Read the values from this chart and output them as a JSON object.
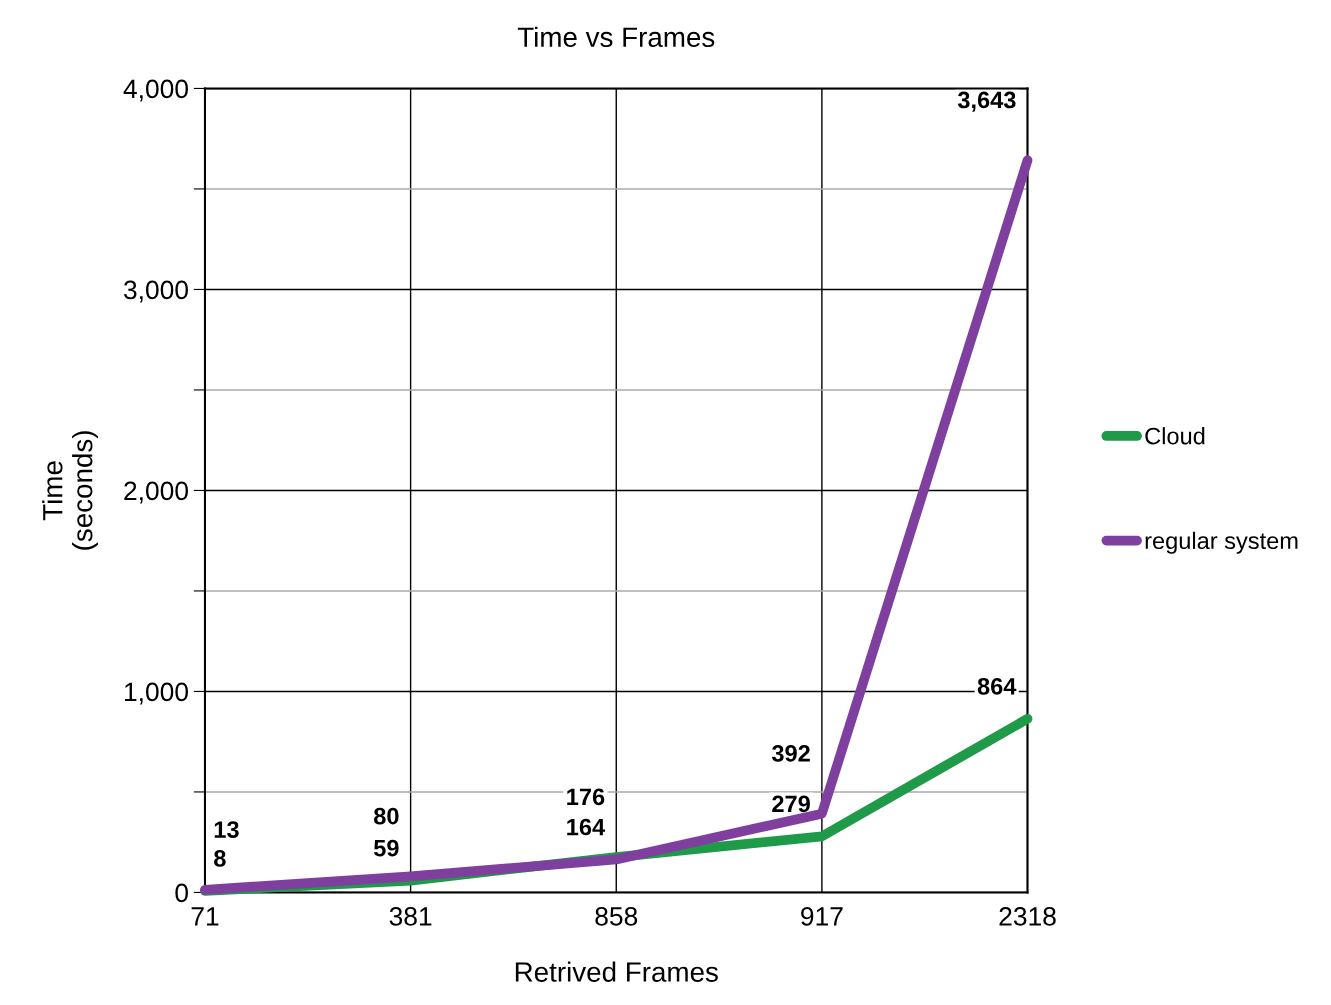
{
  "chart_data": {
    "type": "line",
    "title": "Time vs Frames",
    "xlabel": "Retrived Frames",
    "ylabel": "Time\n(seconds)",
    "categories": [
      "71",
      "381",
      "858",
      "917",
      "2318"
    ],
    "series": [
      {
        "name": "Cloud",
        "color": "#1f9a48",
        "values": [
          8,
          59,
          176,
          279,
          864
        ],
        "value_labels": [
          "8",
          "59",
          "176",
          "279",
          "864"
        ]
      },
      {
        "name": "regular system",
        "color": "#7f3f9f",
        "values": [
          13,
          80,
          164,
          392,
          3643
        ],
        "value_labels": [
          "13",
          "80",
          "164",
          "392",
          "3,643"
        ]
      }
    ],
    "ylim": [
      0,
      4000
    ],
    "yticks": [
      {
        "value": 0,
        "label": "0"
      },
      {
        "value": 500,
        "label": null
      },
      {
        "value": 1000,
        "label": "1,000"
      },
      {
        "value": 1500,
        "label": null
      },
      {
        "value": 2000,
        "label": "2,000"
      },
      {
        "value": 2500,
        "label": null
      },
      {
        "value": 3000,
        "label": "3,000"
      },
      {
        "value": 3500,
        "label": null
      },
      {
        "value": 4000,
        "label": "4,000"
      }
    ],
    "grid": true,
    "legend": "right",
    "marker": "none",
    "line_style": "solid"
  }
}
